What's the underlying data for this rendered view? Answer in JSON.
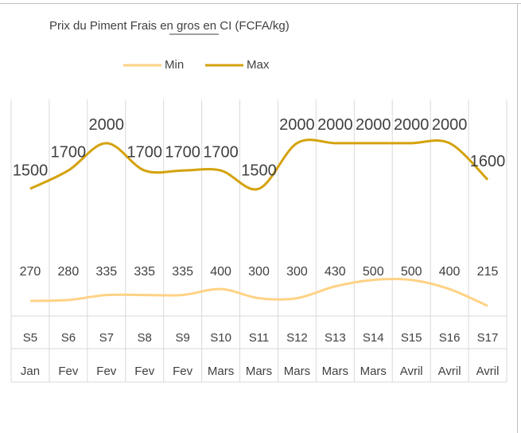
{
  "chart_data": {
    "type": "line",
    "title": "Prix du Piment Frais en gros en CI (FCFA/kg)",
    "categories": [
      "S5",
      "S6",
      "S7",
      "S8",
      "S9",
      "S10",
      "S11",
      "S12",
      "S13",
      "S14",
      "S15",
      "S16",
      "S17"
    ],
    "month_labels": [
      "Jan",
      "Fev",
      "Fev",
      "Fev",
      "Fev",
      "Mars",
      "Mars",
      "Mars",
      "Mars",
      "Mars",
      "Avril",
      "Avril",
      "Avril"
    ],
    "series": [
      {
        "name": "Min",
        "color": "#ffd285",
        "values": [
          270,
          280,
          335,
          335,
          335,
          400,
          300,
          300,
          430,
          500,
          500,
          400,
          215
        ]
      },
      {
        "name": "Max",
        "color": "#d4a20c",
        "values": [
          1500,
          1700,
          2000,
          1700,
          1700,
          1700,
          1500,
          2000,
          2000,
          2000,
          2000,
          2000,
          1600
        ]
      }
    ],
    "ylim": [
      0,
      2400
    ]
  }
}
